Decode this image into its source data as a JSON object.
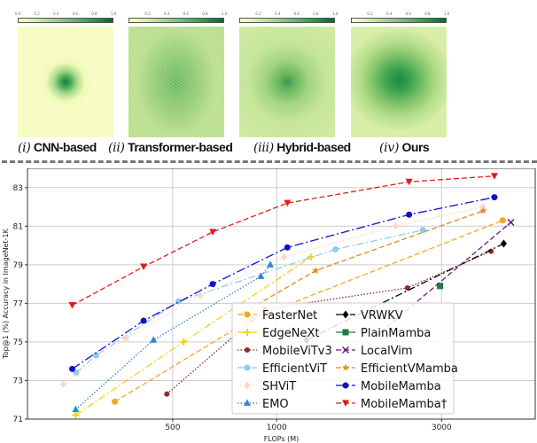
{
  "panels": [
    {
      "num": "(i)",
      "label": "CNN-based"
    },
    {
      "num": "(ii)",
      "label": "Transformer-based"
    },
    {
      "num": "(iii)",
      "label": "Hybrid-based"
    },
    {
      "num": "(iv)",
      "label": "Ours"
    }
  ],
  "colorbar_ticks_first": [
    "0.0",
    "0.2",
    "0.4",
    "0.6",
    "0.8",
    "1.0"
  ],
  "colorbar_ticks": [
    "0.2",
    "0.4",
    "0.6",
    "0.8",
    "1.0"
  ],
  "chart_data": {
    "type": "line",
    "xlabel": "FLOPs (M)",
    "ylabel": "Top@1 (%) Accuracy in ImageNet-1K",
    "xscale": "log",
    "xlim": [
      190,
      5600
    ],
    "ylim": [
      71,
      84
    ],
    "xticks": [
      500,
      1000,
      3000
    ],
    "yticks": [
      71,
      73,
      75,
      77,
      79,
      81,
      83
    ],
    "grid": true,
    "legend": "lower-right",
    "series": [
      {
        "name": "FasterNet",
        "color": "#f5a623",
        "dash": "6,3",
        "marker": "circle",
        "points": [
          [
            340,
            71.9
          ],
          [
            848,
            76.2
          ],
          [
            4510,
            81.3
          ]
        ]
      },
      {
        "name": "EdgeNeXt",
        "color": "#f2d21b",
        "dash": "8,3,2,3",
        "marker": "plus",
        "points": [
          [
            262,
            71.2
          ],
          [
            538,
            75.0
          ],
          [
            1255,
            79.4
          ]
        ]
      },
      {
        "name": "MobileViTv3",
        "color": "#8b2a2a",
        "dash": "1.5,2",
        "marker": "hexagon",
        "points": [
          [
            481,
            72.3
          ],
          [
            925,
            76.7
          ],
          [
            2390,
            77.8
          ],
          [
            4170,
            79.7
          ]
        ]
      },
      {
        "name": "EfficientViT",
        "color": "#8ecbef",
        "dash": "8,3,2,3",
        "marker": "circle",
        "points": [
          [
            263,
            73.4
          ],
          [
            300,
            74.3
          ],
          [
            520,
            77.1
          ],
          [
            1480,
            79.8
          ],
          [
            2650,
            80.8
          ]
        ]
      },
      {
        "name": "SHViT",
        "color": "#f7d9c4",
        "dash": "1.5,2",
        "marker": "diamond",
        "points": [
          [
            241,
            72.8
          ],
          [
            367,
            75.2
          ],
          [
            601,
            77.4
          ],
          [
            1050,
            79.4
          ],
          [
            2210,
            81.0
          ],
          [
            3950,
            82.0
          ]
        ]
      },
      {
        "name": "EMO",
        "color": "#2d86d6",
        "dash": "1.5,2",
        "marker": "triangle",
        "points": [
          [
            262,
            71.5
          ],
          [
            440,
            75.1
          ],
          [
            900,
            78.4
          ],
          [
            958,
            79.0
          ]
        ]
      },
      {
        "name": "VRWKV",
        "color": "#000000",
        "dash": "8,3,2,3",
        "marker": "diamond",
        "points": [
          [
            1220,
            75.1
          ],
          [
            4540,
            80.1
          ]
        ]
      },
      {
        "name": "PlainMamba",
        "color": "#1e7b3a",
        "dash": "",
        "marker": "square",
        "points": [
          [
            2970,
            77.9
          ]
        ]
      },
      {
        "name": "LocalVim",
        "color": "#6a1b8a",
        "dash": "6,3",
        "marker": "x",
        "points": [
          [
            2000,
            75.5
          ],
          [
            4760,
            81.2
          ]
        ]
      },
      {
        "name": "EfficientVMamba",
        "color": "#e08a1e",
        "dash": "6,3",
        "marker": "star",
        "points": [
          [
            799,
            76.5
          ],
          [
            1297,
            78.7
          ],
          [
            3960,
            81.8
          ]
        ]
      },
      {
        "name": "MobileMamba",
        "color": "#1010c8",
        "dash": "10,3,2,3",
        "marker": "circle",
        "points": [
          [
            256,
            73.6
          ],
          [
            412,
            76.1
          ],
          [
            653,
            78.0
          ],
          [
            1074,
            79.9
          ],
          [
            2417,
            81.6
          ],
          [
            4266,
            82.5
          ]
        ]
      },
      {
        "name": "MobileMamba†",
        "color": "#e01b1b",
        "dash": "6,3",
        "marker": "triangle-down",
        "points": [
          [
            256,
            76.9
          ],
          [
            412,
            78.9
          ],
          [
            653,
            80.7
          ],
          [
            1074,
            82.2
          ],
          [
            2417,
            83.3
          ],
          [
            4266,
            83.6
          ]
        ]
      }
    ]
  }
}
